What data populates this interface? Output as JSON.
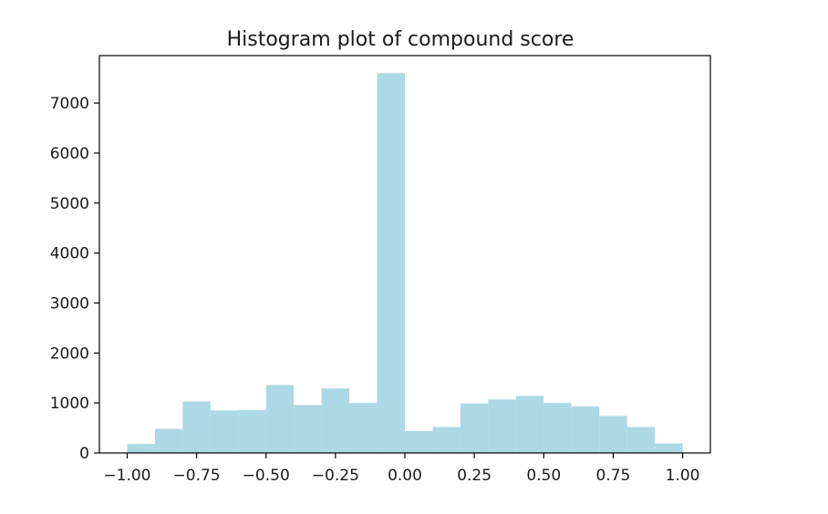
{
  "chart_data": {
    "type": "bar",
    "title": "Histogram plot of compound score",
    "xlabel": "",
    "ylabel": "",
    "bar_color": "#add8e6",
    "xlim": [
      -1.1,
      1.1
    ],
    "ylim": [
      0,
      7950
    ],
    "bins": [
      {
        "x0": -1.0,
        "x1": -0.9,
        "value": 180
      },
      {
        "x0": -0.9,
        "x1": -0.8,
        "value": 480
      },
      {
        "x0": -0.8,
        "x1": -0.7,
        "value": 1030
      },
      {
        "x0": -0.7,
        "x1": -0.6,
        "value": 850
      },
      {
        "x0": -0.6,
        "x1": -0.5,
        "value": 860
      },
      {
        "x0": -0.5,
        "x1": -0.4,
        "value": 1360
      },
      {
        "x0": -0.4,
        "x1": -0.3,
        "value": 960
      },
      {
        "x0": -0.3,
        "x1": -0.2,
        "value": 1290
      },
      {
        "x0": -0.2,
        "x1": -0.1,
        "value": 1000
      },
      {
        "x0": -0.1,
        "x1": 0.0,
        "value": 7600
      },
      {
        "x0": 0.0,
        "x1": 0.1,
        "value": 440
      },
      {
        "x0": 0.1,
        "x1": 0.2,
        "value": 520
      },
      {
        "x0": 0.2,
        "x1": 0.3,
        "value": 990
      },
      {
        "x0": 0.3,
        "x1": 0.4,
        "value": 1070
      },
      {
        "x0": 0.4,
        "x1": 0.5,
        "value": 1140
      },
      {
        "x0": 0.5,
        "x1": 0.6,
        "value": 1000
      },
      {
        "x0": 0.6,
        "x1": 0.7,
        "value": 930
      },
      {
        "x0": 0.7,
        "x1": 0.8,
        "value": 740
      },
      {
        "x0": 0.8,
        "x1": 0.9,
        "value": 520
      },
      {
        "x0": 0.9,
        "x1": 1.0,
        "value": 190
      }
    ],
    "x_ticks": [
      {
        "value": -1.0,
        "label": "−1.00"
      },
      {
        "value": -0.75,
        "label": "−0.75"
      },
      {
        "value": -0.5,
        "label": "−0.50"
      },
      {
        "value": -0.25,
        "label": "−0.25"
      },
      {
        "value": 0.0,
        "label": "0.00"
      },
      {
        "value": 0.25,
        "label": "0.25"
      },
      {
        "value": 0.5,
        "label": "0.50"
      },
      {
        "value": 0.75,
        "label": "0.75"
      },
      {
        "value": 1.0,
        "label": "1.00"
      }
    ],
    "y_ticks": [
      {
        "value": 0,
        "label": "0"
      },
      {
        "value": 1000,
        "label": "1000"
      },
      {
        "value": 2000,
        "label": "2000"
      },
      {
        "value": 3000,
        "label": "3000"
      },
      {
        "value": 4000,
        "label": "4000"
      },
      {
        "value": 5000,
        "label": "5000"
      },
      {
        "value": 6000,
        "label": "6000"
      },
      {
        "value": 7000,
        "label": "7000"
      }
    ],
    "grid": false,
    "legend": "none"
  }
}
